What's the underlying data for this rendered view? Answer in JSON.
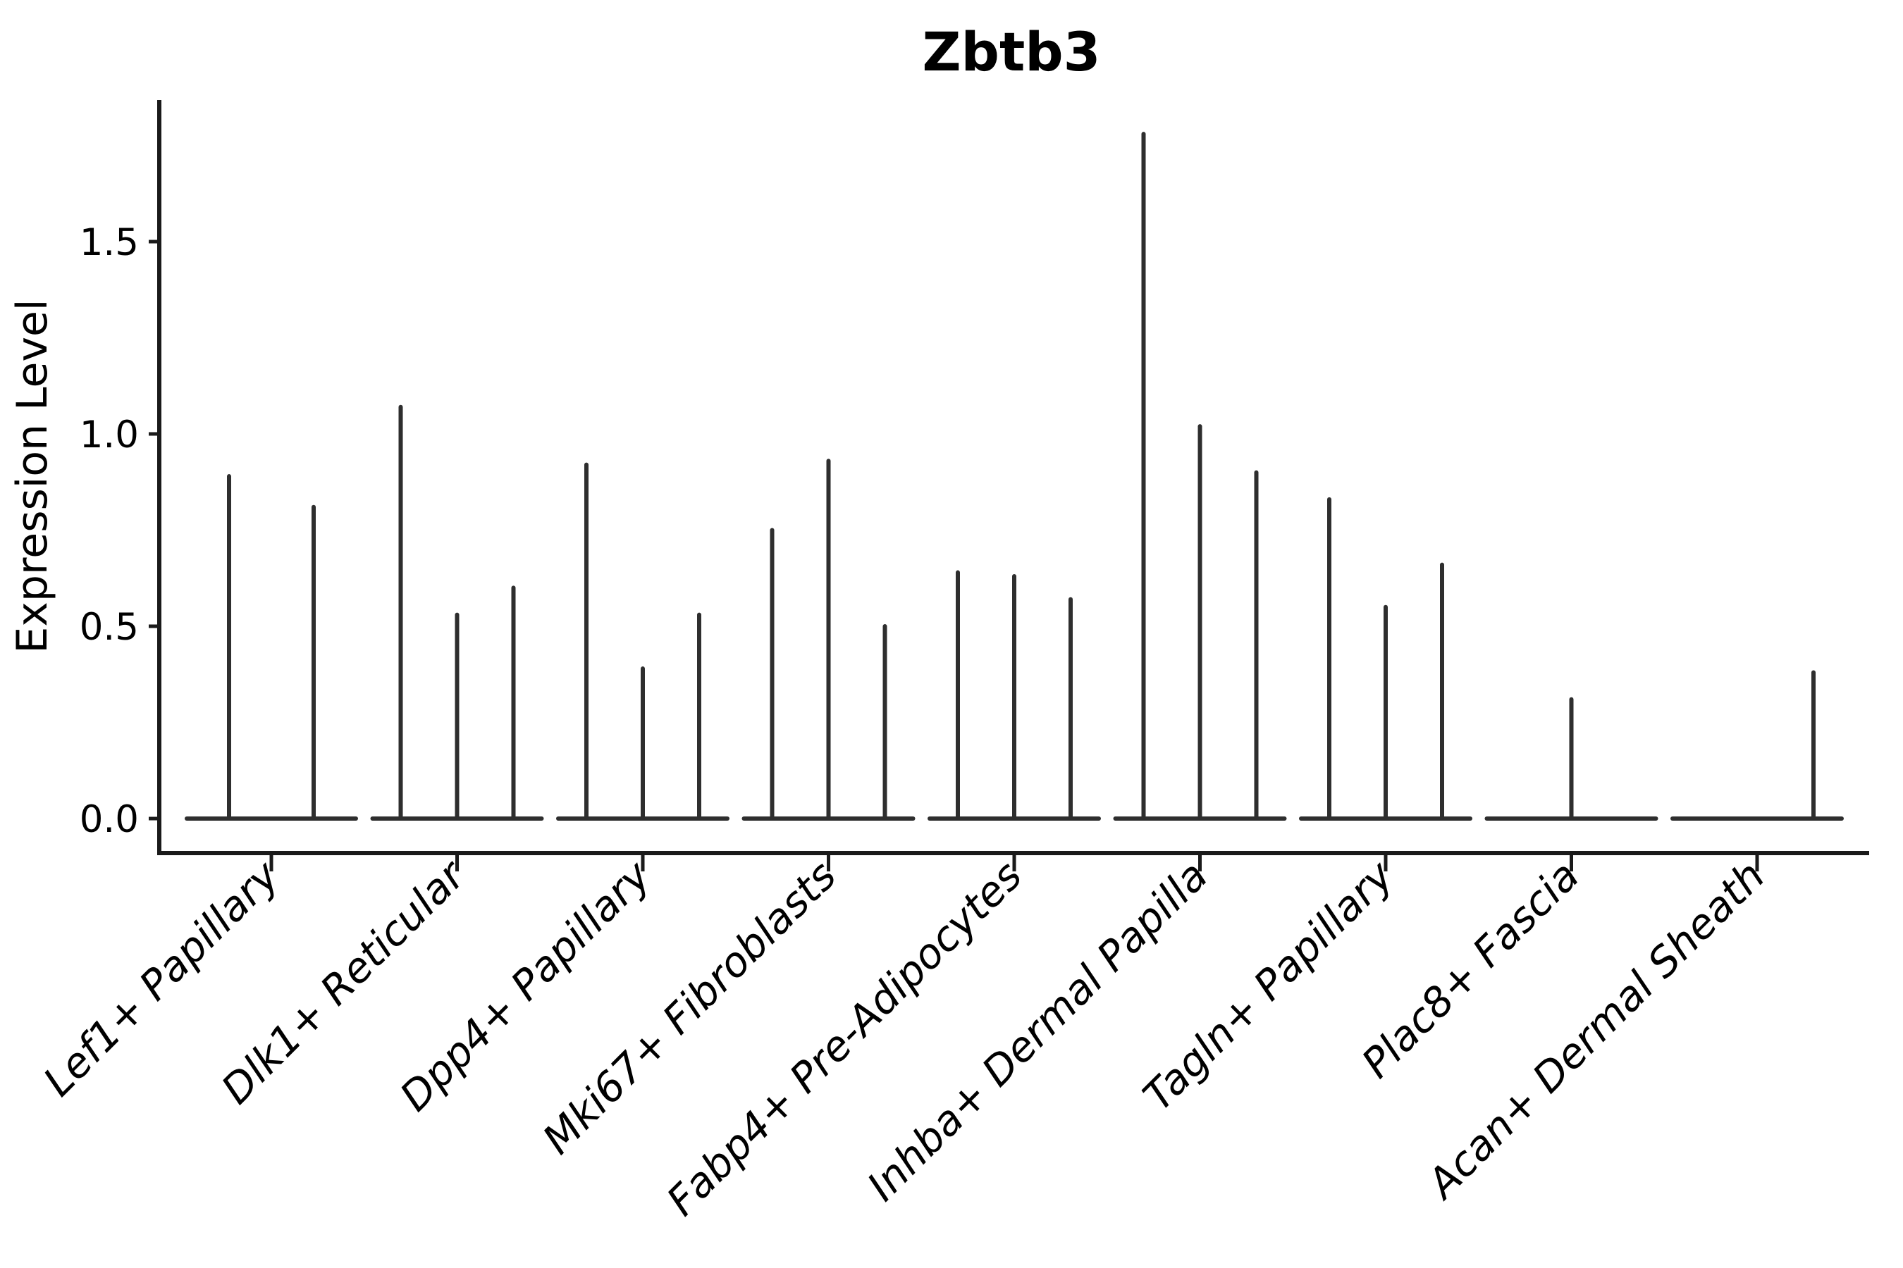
{
  "figure": {
    "title": "Zbtb3",
    "background": "#ffffff"
  },
  "colors": {
    "violin_line": "#2e2e2e",
    "spine": "#1a1a1a",
    "text": "#000000"
  },
  "chart_data": {
    "type": "violin",
    "title": "Zbtb3",
    "xlabel": "",
    "ylabel": "Expression Level",
    "ylim": [
      -0.09,
      1.87
    ],
    "grid": false,
    "legend": "none",
    "y_ticks": [
      {
        "value": 0.0,
        "label": "0.0"
      },
      {
        "value": 0.5,
        "label": "0.5"
      },
      {
        "value": 1.0,
        "label": "1.0"
      },
      {
        "value": 1.5,
        "label": "1.5"
      }
    ],
    "note": "Each category shows thin collapsed violins (sparse expression); spikes give the max expression per sub-violin; flat baseline at 0 spans each category group.",
    "categories": [
      {
        "label": "Lef1+ Papillary",
        "slots": 2,
        "spikes": [
          {
            "slot": 0,
            "max": 0.89
          },
          {
            "slot": 1,
            "max": 0.81
          }
        ]
      },
      {
        "label": "Dlk1+ Reticular",
        "slots": 3,
        "spikes": [
          {
            "slot": 0,
            "max": 1.07
          },
          {
            "slot": 1,
            "max": 0.53
          },
          {
            "slot": 2,
            "max": 0.6
          }
        ]
      },
      {
        "label": "Dpp4+ Papillary",
        "slots": 3,
        "spikes": [
          {
            "slot": 0,
            "max": 0.92
          },
          {
            "slot": 1,
            "max": 0.39
          },
          {
            "slot": 2,
            "max": 0.53
          }
        ]
      },
      {
        "label": "Mki67+ Fibroblasts",
        "slots": 3,
        "spikes": [
          {
            "slot": 0,
            "max": 0.75
          },
          {
            "slot": 1,
            "max": 0.93
          },
          {
            "slot": 2,
            "max": 0.5
          }
        ]
      },
      {
        "label": "Fabp4+ Pre-Adipocytes",
        "slots": 3,
        "spikes": [
          {
            "slot": 0,
            "max": 0.64
          },
          {
            "slot": 1,
            "max": 0.63
          },
          {
            "slot": 2,
            "max": 0.57
          }
        ]
      },
      {
        "label": "Inhba+ Dermal Papilla",
        "slots": 3,
        "spikes": [
          {
            "slot": 0,
            "max": 1.78
          },
          {
            "slot": 1,
            "max": 1.02
          },
          {
            "slot": 2,
            "max": 0.9
          }
        ]
      },
      {
        "label": "Tagln+ Papillary",
        "slots": 3,
        "spikes": [
          {
            "slot": 0,
            "max": 0.83
          },
          {
            "slot": 1,
            "max": 0.55
          },
          {
            "slot": 2,
            "max": 0.66
          }
        ]
      },
      {
        "label": "Plac8+ Fascia",
        "slots": 3,
        "spikes": [
          {
            "slot": 1,
            "max": 0.31
          }
        ]
      },
      {
        "label": "Acan+ Dermal Sheath",
        "slots": 3,
        "spikes": [
          {
            "slot": 2,
            "max": 0.38
          }
        ]
      }
    ]
  }
}
